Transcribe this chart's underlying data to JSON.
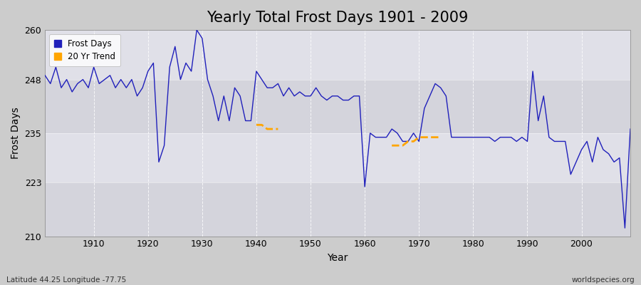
{
  "title": "Yearly Total Frost Days 1901 - 2009",
  "xlabel": "Year",
  "ylabel": "Frost Days",
  "footer_left": "Latitude 44.25 Longitude -77.75",
  "footer_right": "worldspecies.org",
  "ylim": [
    210,
    260
  ],
  "yticks": [
    210,
    223,
    235,
    248,
    260
  ],
  "years": [
    1901,
    1902,
    1903,
    1904,
    1905,
    1906,
    1907,
    1908,
    1909,
    1910,
    1911,
    1912,
    1913,
    1914,
    1915,
    1916,
    1917,
    1918,
    1919,
    1920,
    1921,
    1922,
    1923,
    1924,
    1925,
    1926,
    1927,
    1928,
    1929,
    1930,
    1931,
    1932,
    1933,
    1934,
    1935,
    1936,
    1937,
    1938,
    1939,
    1940,
    1941,
    1942,
    1943,
    1944,
    1945,
    1946,
    1947,
    1948,
    1949,
    1950,
    1951,
    1952,
    1953,
    1954,
    1955,
    1956,
    1957,
    1958,
    1959,
    1960,
    1961,
    1962,
    1963,
    1964,
    1965,
    1966,
    1967,
    1968,
    1969,
    1970,
    1971,
    1972,
    1973,
    1974,
    1975,
    1976,
    1977,
    1978,
    1979,
    1980,
    1981,
    1982,
    1983,
    1984,
    1985,
    1986,
    1987,
    1988,
    1989,
    1990,
    1991,
    1992,
    1993,
    1994,
    1995,
    1996,
    1997,
    1998,
    1999,
    2000,
    2001,
    2002,
    2003,
    2004,
    2005,
    2006,
    2007,
    2008,
    2009
  ],
  "frost_days": [
    249,
    247,
    251,
    246,
    248,
    245,
    247,
    248,
    246,
    251,
    247,
    248,
    249,
    246,
    248,
    246,
    248,
    244,
    246,
    250,
    252,
    228,
    232,
    251,
    256,
    248,
    252,
    250,
    260,
    258,
    248,
    244,
    238,
    244,
    238,
    246,
    244,
    238,
    238,
    250,
    248,
    246,
    246,
    247,
    244,
    246,
    244,
    245,
    244,
    244,
    246,
    244,
    243,
    244,
    244,
    243,
    243,
    244,
    244,
    222,
    235,
    234,
    234,
    234,
    236,
    235,
    233,
    233,
    235,
    233,
    241,
    244,
    247,
    246,
    244,
    234,
    234,
    234,
    234,
    234,
    234,
    234,
    234,
    233,
    234,
    234,
    234,
    233,
    234,
    233,
    250,
    238,
    244,
    234,
    233,
    233,
    233,
    225,
    228,
    231,
    233,
    228,
    234,
    231,
    230,
    228,
    229,
    212,
    236
  ],
  "trend_segments": [
    {
      "years": [
        1940,
        1941,
        1942,
        1943,
        1944
      ],
      "values": [
        237,
        237,
        236,
        236,
        236
      ]
    },
    {
      "years": [
        1965,
        1966,
        1967,
        1968,
        1969,
        1970,
        1971,
        1972,
        1973,
        1974
      ],
      "values": [
        232,
        232,
        232,
        233,
        233,
        234,
        234,
        234,
        234,
        234
      ]
    }
  ],
  "line_color": "#2020bb",
  "trend_color": "#ffa500",
  "title_fontsize": 15,
  "label_fontsize": 10,
  "tick_fontsize": 9,
  "bg_outer": "#cccccc",
  "band_colors": [
    "#d4d4dc",
    "#e0e0e8",
    "#d4d4dc",
    "#e0e0e8"
  ],
  "grid_line_color": "#ffffff",
  "spine_color": "#999999"
}
